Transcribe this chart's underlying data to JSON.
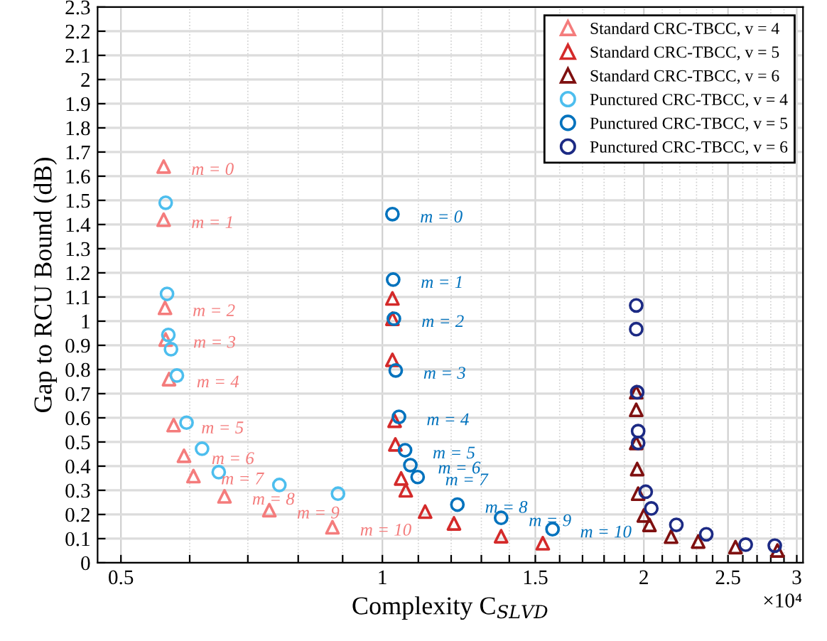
{
  "chart_data": {
    "type": "scatter",
    "xlabel": "Complexity C$_{SLVD}$",
    "ylabel": "Gap to RCU Bound (dB)",
    "log": "x",
    "xlim": [
      0.47,
      3.05
    ],
    "ylim": [
      0,
      2.3
    ],
    "xticks": [
      0.5,
      {
        "value": 0.6,
        "label": null
      },
      {
        "value": 0.7,
        "label": null
      },
      {
        "value": 0.8,
        "label": null
      },
      {
        "value": 0.9,
        "label": null
      },
      1,
      {
        "value": 1.1,
        "label": null
      },
      {
        "value": 1.2,
        "label": null
      },
      {
        "value": 1.3,
        "label": null
      },
      {
        "value": 1.4,
        "label": null
      },
      1.5,
      {
        "value": 1.6,
        "label": null
      },
      {
        "value": 1.7,
        "label": null
      },
      {
        "value": 1.8,
        "label": null
      },
      {
        "value": 1.9,
        "label": null
      },
      2,
      {
        "value": 2.1,
        "label": null
      },
      {
        "value": 2.2,
        "label": null
      },
      {
        "value": 2.3,
        "label": null
      },
      {
        "value": 2.4,
        "label": null
      },
      2.5,
      {
        "value": 2.6,
        "label": null
      },
      {
        "value": 2.7,
        "label": null
      },
      {
        "value": 2.8,
        "label": null
      },
      {
        "value": 2.9,
        "label": null
      },
      3
    ],
    "yticks": [
      0,
      0.1,
      0.2,
      0.3,
      0.4,
      0.5,
      0.6,
      0.7,
      0.8,
      0.9,
      1,
      1.1,
      1.2,
      1.3,
      1.4,
      1.5,
      1.6,
      1.7,
      1.8,
      1.9,
      2,
      2.1,
      2.2,
      2.3
    ],
    "grid": true,
    "legend": "top right",
    "series": [
      {
        "name": "Standard CRC-TBCC, v = 4",
        "color": "#f47c7c",
        "marker": "triangle",
        "x": [
          0.56,
          0.56,
          0.562,
          0.563,
          0.568,
          0.575,
          0.591,
          0.606,
          0.658,
          0.741,
          0.876
        ],
        "values": [
          1.64,
          1.42,
          1.055,
          0.924,
          0.76,
          0.57,
          0.443,
          0.359,
          0.275,
          0.218,
          0.147
        ]
      },
      {
        "name": "Standard CRC-TBCC, v = 5",
        "color": "#d42a2a",
        "marker": "triangle",
        "x": [
          1.027,
          1.027,
          1.027,
          1.033,
          1.035,
          1.051,
          1.064,
          1.12,
          1.209,
          1.37,
          1.53
        ],
        "values": [
          1.094,
          1.01,
          0.84,
          0.588,
          0.49,
          0.349,
          0.3,
          0.212,
          0.163,
          0.11,
          0.081
        ]
      },
      {
        "name": "Standard CRC-TBCC, v = 6",
        "color": "#7f1010",
        "marker": "triangle",
        "x": [
          1.96,
          1.96,
          1.96,
          1.965,
          1.97,
          2.0,
          2.03,
          2.15,
          2.31,
          2.55,
          2.85
        ],
        "values": [
          0.706,
          0.633,
          0.496,
          0.388,
          0.286,
          0.196,
          0.157,
          0.108,
          0.088,
          0.065,
          0.051
        ]
      },
      {
        "name": "Punctured CRC-TBCC, v = 4",
        "color": "#4dbeee",
        "marker": "circle",
        "x": [
          0.563,
          0.565,
          0.567,
          0.571,
          0.58,
          0.595,
          0.62,
          0.648,
          0.761,
          0.889
        ],
        "values": [
          1.49,
          1.113,
          0.943,
          0.884,
          0.775,
          0.58,
          0.472,
          0.375,
          0.322,
          0.286
        ]
      },
      {
        "name": "Punctured CRC-TBCC, v = 5",
        "color": "#0072bd",
        "marker": "circle",
        "x": [
          1.027,
          1.029,
          1.031,
          1.036,
          1.045,
          1.062,
          1.077,
          1.098,
          1.22,
          1.37,
          1.57
        ],
        "values": [
          1.443,
          1.172,
          1.01,
          0.796,
          0.604,
          0.466,
          0.404,
          0.355,
          0.241,
          0.186,
          0.139
        ]
      },
      {
        "name": "Punctured CRC-TBCC, v = 6",
        "color": "#1c2a84",
        "marker": "circle",
        "x": [
          1.96,
          1.96,
          1.965,
          1.97,
          1.97,
          2.01,
          2.04,
          2.18,
          2.36,
          2.62,
          2.83
        ],
        "values": [
          1.065,
          0.967,
          0.706,
          0.545,
          0.496,
          0.294,
          0.225,
          0.157,
          0.118,
          0.075,
          0.071
        ]
      }
    ],
    "annotations": [
      {
        "text": "m = 0",
        "x": 0.56,
        "y": 1.64
      },
      {
        "text": "m = 1",
        "x": 0.56,
        "y": 1.42
      },
      {
        "text": "m = 2",
        "x": 0.562,
        "y": 1.055
      },
      {
        "text": "m = 3",
        "x": 0.563,
        "y": 0.924
      },
      {
        "text": "m = 4",
        "x": 0.568,
        "y": 0.76
      },
      {
        "text": "m = 5",
        "x": 0.575,
        "y": 0.57
      },
      {
        "text": "m = 6",
        "x": 0.591,
        "y": 0.443
      },
      {
        "text": "m = 7",
        "x": 0.606,
        "y": 0.359
      },
      {
        "text": "m = 8",
        "x": 0.658,
        "y": 0.275
      },
      {
        "text": "m = 9",
        "x": 0.741,
        "y": 0.218
      },
      {
        "text": "m = 10",
        "x": 0.876,
        "y": 0.147
      },
      {
        "text": "m = 0",
        "x": 1.027,
        "y": 1.443
      },
      {
        "text": "m = 1",
        "x": 1.029,
        "y": 1.172
      },
      {
        "text": "m = 2",
        "x": 1.031,
        "y": 1.01
      },
      {
        "text": "m = 3",
        "x": 1.036,
        "y": 0.796
      },
      {
        "text": "m = 4",
        "x": 1.045,
        "y": 0.604
      },
      {
        "text": "m = 5",
        "x": 1.062,
        "y": 0.466
      },
      {
        "text": "m = 6",
        "x": 1.077,
        "y": 0.404
      },
      {
        "text": "m = 7",
        "x": 1.098,
        "y": 0.355
      },
      {
        "text": "m = 8",
        "x": 1.22,
        "y": 0.241
      },
      {
        "text": "m = 9",
        "x": 1.37,
        "y": 0.186
      },
      {
        "text": "m = 10",
        "x": 1.57,
        "y": 0.139
      },
      "×10⁴"
    ]
  }
}
